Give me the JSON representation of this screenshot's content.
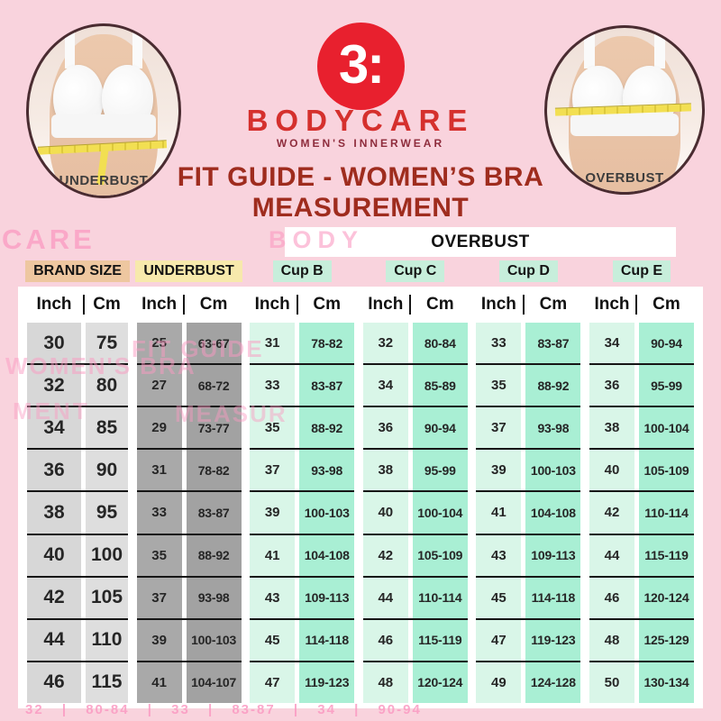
{
  "colors": {
    "bg": "#f9d3dd",
    "card": "#ffffff",
    "g1a": "#d7d7d7",
    "g1b": "#dedede",
    "g2a": "#a9a9a9",
    "g2b": "#a2a2a2",
    "cupa": "#d9f6e8",
    "cupb": "#a9efd4",
    "line": "#161616",
    "title": "#9f2c1e",
    "brand_red": "#d5302d",
    "tagline": "#8e2c3c",
    "logo_red": "#e8202e",
    "label_brand": "#eec7a0",
    "label_under": "#f7e9ac",
    "label_cup": "#c7eedb",
    "ghost": "#fb9ac2"
  },
  "brand": {
    "logo_glyph": "3:",
    "name": "BODYCARE",
    "tagline": "WOMEN'S INNERWEAR"
  },
  "title": {
    "line1": "FIT GUIDE - WOMEN’S BRA",
    "line2": "MEASUREMENT"
  },
  "photos": {
    "left_caption": "UNDERBUST",
    "right_caption": "OVERBUST"
  },
  "table": {
    "overbust_span_label": "OVERBUST",
    "group_labels": [
      "BRAND SIZE",
      "UNDERBUST",
      "Cup B",
      "Cup C",
      "Cup D",
      "Cup E"
    ],
    "unit_headers": {
      "inch": "Inch",
      "cm": "Cm",
      "divider": "|"
    }
  },
  "watermarks": {
    "care": "CARE",
    "body": "BODY",
    "womens_bra": "WOMEN'S BRA",
    "ment": "MENT",
    "fit_guide": "FIT GUIDE",
    "measur": "MEASUR",
    "bottom_row": "32 | 80-84 | 33 | 83-87 | 34 | 90-94"
  },
  "chart_data": {
    "type": "table",
    "title": "FIT GUIDE - WOMEN'S BRA MEASUREMENT",
    "column_groups": [
      "BRAND SIZE",
      "UNDERBUST",
      "OVERBUST Cup B",
      "OVERBUST Cup C",
      "OVERBUST Cup D",
      "OVERBUST Cup E"
    ],
    "columns": [
      "Brand Size Inch",
      "Brand Size Cm",
      "Underbust Inch",
      "Underbust Cm",
      "Cup B Inch",
      "Cup B Cm",
      "Cup C Inch",
      "Cup C Cm",
      "Cup D Inch",
      "Cup D Cm",
      "Cup E Inch",
      "Cup E Cm"
    ],
    "rows": [
      [
        "30",
        "75",
        "25",
        "63-67",
        "31",
        "78-82",
        "32",
        "80-84",
        "33",
        "83-87",
        "34",
        "90-94"
      ],
      [
        "32",
        "80",
        "27",
        "68-72",
        "33",
        "83-87",
        "34",
        "85-89",
        "35",
        "88-92",
        "36",
        "95-99"
      ],
      [
        "34",
        "85",
        "29",
        "73-77",
        "35",
        "88-92",
        "36",
        "90-94",
        "37",
        "93-98",
        "38",
        "100-104"
      ],
      [
        "36",
        "90",
        "31",
        "78-82",
        "37",
        "93-98",
        "38",
        "95-99",
        "39",
        "100-103",
        "40",
        "105-109"
      ],
      [
        "38",
        "95",
        "33",
        "83-87",
        "39",
        "100-103",
        "40",
        "100-104",
        "41",
        "104-108",
        "42",
        "110-114"
      ],
      [
        "40",
        "100",
        "35",
        "88-92",
        "41",
        "104-108",
        "42",
        "105-109",
        "43",
        "109-113",
        "44",
        "115-119"
      ],
      [
        "42",
        "105",
        "37",
        "93-98",
        "43",
        "109-113",
        "44",
        "110-114",
        "45",
        "114-118",
        "46",
        "120-124"
      ],
      [
        "44",
        "110",
        "39",
        "100-103",
        "45",
        "114-118",
        "46",
        "115-119",
        "47",
        "119-123",
        "48",
        "125-129"
      ],
      [
        "46",
        "115",
        "41",
        "104-107",
        "47",
        "119-123",
        "48",
        "120-124",
        "49",
        "124-128",
        "50",
        "130-134"
      ]
    ]
  }
}
